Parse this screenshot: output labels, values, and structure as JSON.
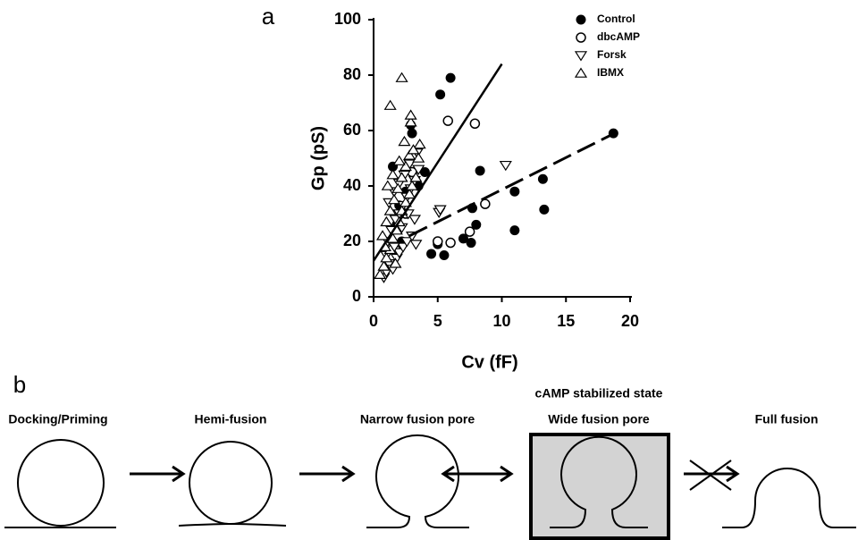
{
  "panel_labels": [
    "a",
    "b"
  ],
  "chart_data": {
    "type": "scatter",
    "xlabel": "Cv (fF)",
    "ylabel": "Gp (pS)",
    "xlim": [
      0,
      20
    ],
    "ylim": [
      0,
      100
    ],
    "xticks": [
      0,
      5,
      10,
      15,
      20
    ],
    "yticks": [
      0,
      20,
      40,
      60,
      80,
      100
    ],
    "grid": false,
    "legend": "upper right",
    "series": [
      {
        "name": "Control",
        "color": "#000000",
        "marker": "filled-circle",
        "x": [
          5.2,
          6,
          2.9,
          3,
          4,
          8.3,
          7.7,
          8,
          11,
          13.2,
          13.3,
          11,
          18.7,
          7,
          7.6,
          4.5,
          5.5,
          5,
          2.5,
          2,
          1.8,
          1.5,
          3.5,
          2.2
        ],
        "values": [
          73,
          79,
          62,
          59,
          45,
          45.5,
          32,
          26,
          38,
          42.5,
          31.5,
          24,
          59,
          21,
          19.5,
          15.5,
          15,
          19,
          38,
          33,
          26,
          47,
          40,
          20
        ]
      },
      {
        "name": "dbcAMP",
        "color": "#000000",
        "marker": "open-circle",
        "x": [
          5.8,
          7.9,
          8.7,
          6,
          5,
          7.5,
          2.5,
          3,
          1.7
        ],
        "values": [
          63.5,
          62.5,
          33.5,
          19.5,
          20,
          23.5,
          30,
          45,
          17
        ]
      },
      {
        "name": "Forsk",
        "color": "#000000",
        "marker": "triangle-down",
        "x": [
          0.8,
          1,
          1.2,
          1.5,
          1.8,
          2,
          2.3,
          2.6,
          3,
          3.3,
          1.1,
          1.4,
          1.7,
          2,
          2.3,
          2.6,
          2.9,
          3.2,
          3.5,
          1.2,
          1.6,
          2,
          2.4,
          2.8,
          3.4,
          3.2,
          1,
          1.6,
          2.2,
          2.7,
          5.1,
          5.2,
          10.3
        ],
        "values": [
          7,
          9,
          12,
          10,
          14,
          16,
          18,
          20,
          22,
          19,
          20,
          24,
          28,
          30,
          33,
          36,
          39,
          42,
          46,
          34,
          38,
          41,
          44,
          48,
          52,
          28,
          15,
          18,
          25,
          30,
          30.5,
          31.5,
          47.5
        ]
      },
      {
        "name": "IBMX",
        "color": "#000000",
        "marker": "triangle-up",
        "x": [
          0.5,
          0.8,
          1,
          1.3,
          1.5,
          1.8,
          2,
          2.2,
          2.5,
          2.8,
          3,
          3.3,
          3.5,
          3.6,
          1,
          1.3,
          1.6,
          1.9,
          2.2,
          2.5,
          2.8,
          3.1,
          0.7,
          1.1,
          1.5,
          2,
          2.4,
          2.9,
          1.3,
          2.2,
          2.9,
          0.9,
          1.7
        ],
        "values": [
          8,
          11,
          14,
          17,
          21,
          24,
          27,
          31,
          34,
          37,
          40,
          43,
          50,
          55,
          27,
          31,
          35,
          39,
          43,
          47,
          51,
          53,
          22,
          40,
          44,
          49,
          56,
          63,
          69,
          79,
          65.5,
          18,
          12
        ]
      }
    ],
    "fit_lines": [
      {
        "style": "solid",
        "x": [
          0,
          10
        ],
        "values": [
          13,
          84
        ]
      },
      {
        "style": "dashed",
        "x": [
          2.8,
          19
        ],
        "values": [
          22,
          59.5
        ]
      }
    ]
  },
  "diagram": {
    "annotation": "cAMP stabilized state",
    "nodes": [
      {
        "label": "Docking/Priming"
      },
      {
        "label": "Hemi-fusion"
      },
      {
        "label": "Narrow fusion pore"
      },
      {
        "label": "Wide fusion pore"
      },
      {
        "label": "Full fusion"
      }
    ]
  }
}
